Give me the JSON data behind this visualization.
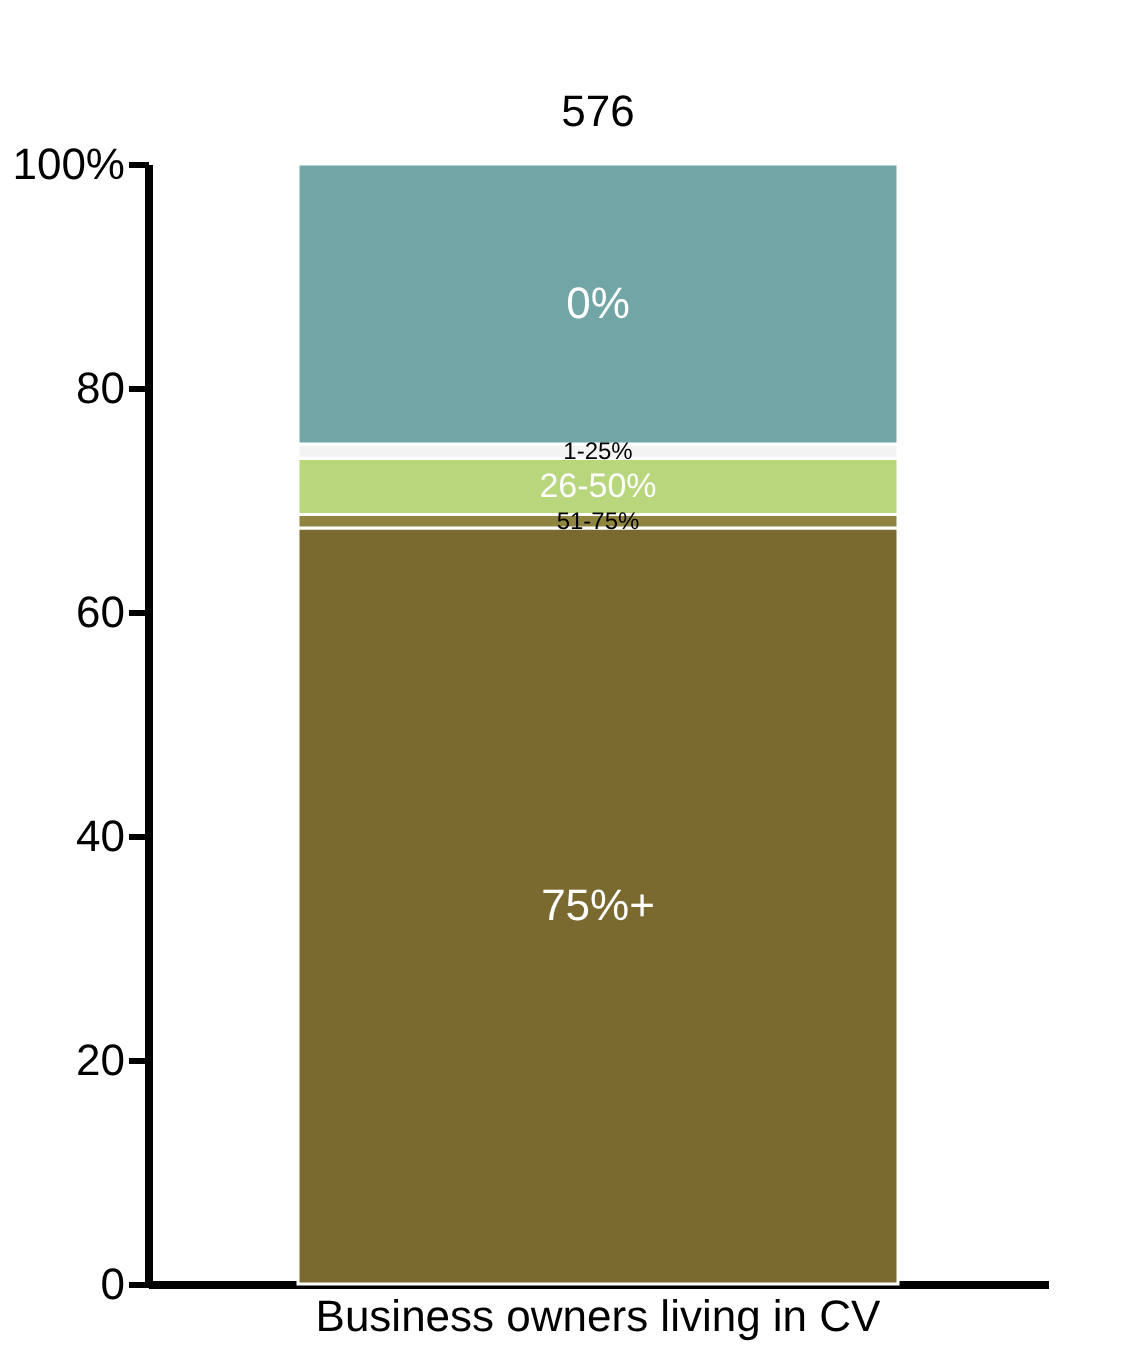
{
  "chart_data": {
    "type": "bar",
    "stacked": true,
    "categories": [
      "Business owners living in CV"
    ],
    "series": [
      {
        "name": "75%+",
        "color": "#7b6a2f",
        "values": [
          67.5
        ]
      },
      {
        "name": "51-75%",
        "color": "#8f8440",
        "values": [
          1.2
        ]
      },
      {
        "name": "26-50%",
        "color": "#b8d77c",
        "values": [
          5.0
        ]
      },
      {
        "name": "1-25%",
        "color": "#f3f3f3",
        "values": [
          1.3
        ]
      },
      {
        "name": "0%",
        "color": "#72a6a6",
        "values": [
          25.0
        ]
      }
    ],
    "annotations": [
      "576"
    ],
    "ylim": [
      0,
      100
    ],
    "yticks": [
      0,
      20,
      40,
      60,
      80,
      {
        "value": 100,
        "label": "100%"
      }
    ],
    "grid": false,
    "legend": false
  }
}
